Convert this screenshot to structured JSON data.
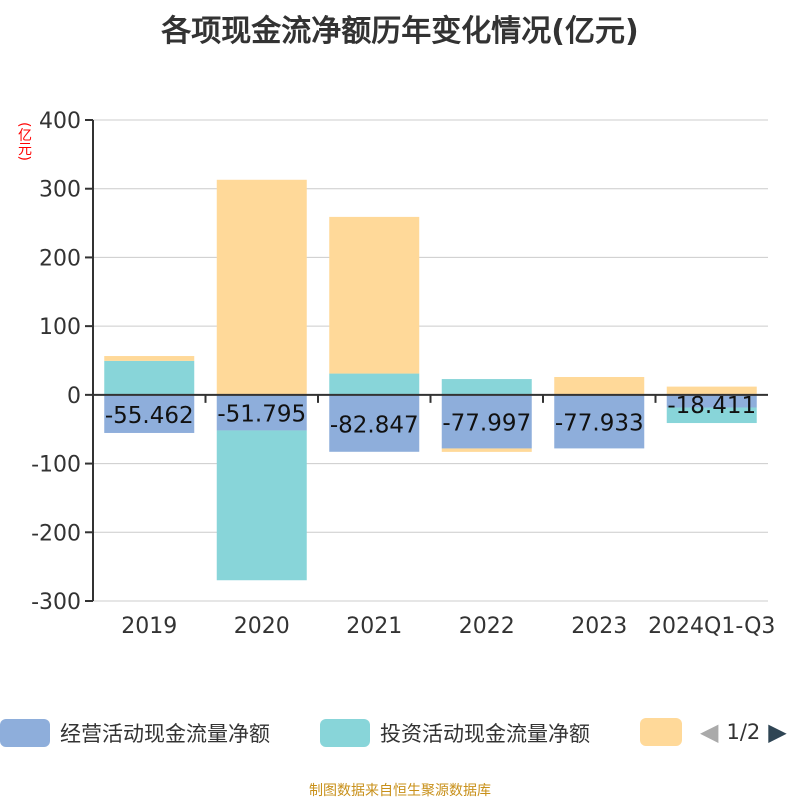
{
  "title": "各项现金流净额历年变化情况(亿元)",
  "source": "制图数据来自恒生聚源数据库",
  "legend_page": "1/2",
  "chart_data": {
    "type": "bar",
    "stacked": true,
    "unit": "(亿元)",
    "categories": [
      "2019",
      "2020",
      "2021",
      "2022",
      "2023",
      "2024Q1-Q3"
    ],
    "ylim": [
      -300,
      400
    ],
    "yticks": [
      -300,
      -200,
      -100,
      0,
      100,
      200,
      300,
      400
    ],
    "grid": true,
    "legend_position": "bottom",
    "series": [
      {
        "name": "经营活动现金流量净额",
        "color": "#8eaedb",
        "values": [
          -55.462,
          -51.795,
          -82.847,
          -77.997,
          -77.933,
          -18.411
        ],
        "labels": [
          "-55.462",
          "-51.795",
          "-82.847",
          "-77.997",
          "-77.933",
          "-18.411"
        ]
      },
      {
        "name": "投资活动现金流量净额",
        "color": "#88d5d9",
        "values": [
          49.5,
          -218,
          31,
          23,
          0,
          -22.6
        ]
      },
      {
        "color": "#ffd999",
        "values": [
          7,
          313,
          228,
          -5,
          26,
          12
        ]
      }
    ]
  }
}
